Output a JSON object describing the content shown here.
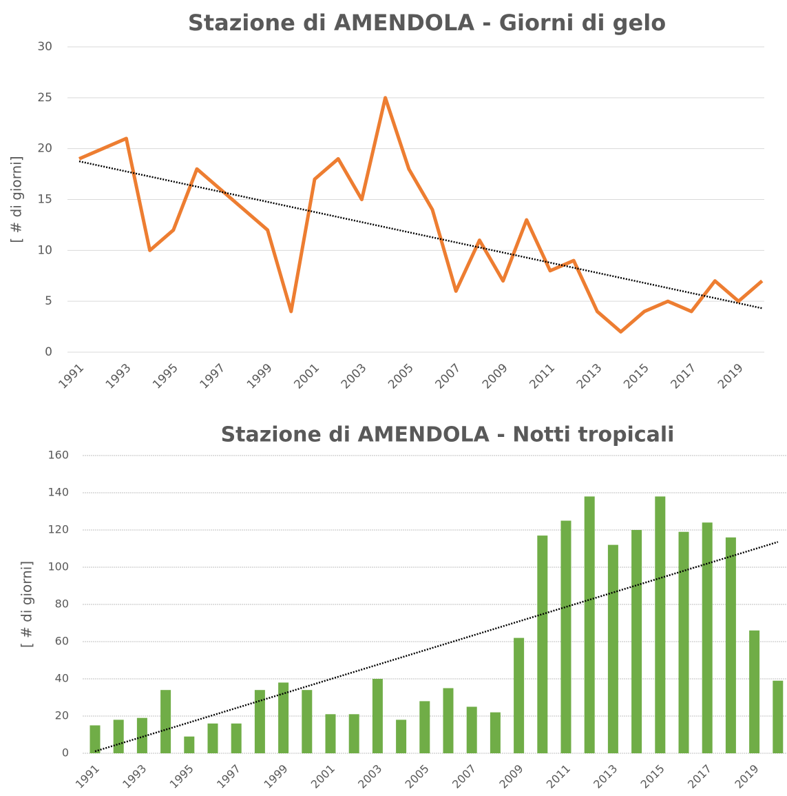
{
  "chart_data": [
    {
      "type": "line",
      "title": "Stazione di AMENDOLA - Giorni di gelo",
      "y_label": "[ # di giorni]",
      "categories": [
        "1991",
        null,
        "1993",
        null,
        "1995",
        null,
        "1997",
        null,
        "1999",
        null,
        "2001",
        null,
        "2003",
        null,
        "2005",
        null,
        "2007",
        null,
        "2009",
        null,
        "2011",
        null,
        "2013",
        null,
        "2015",
        null,
        "2017",
        null,
        "2019",
        null
      ],
      "series": [
        {
          "name": "Giorni di gelo",
          "color": "#ed7d31",
          "values": [
            19,
            20,
            21,
            10,
            12,
            18,
            16,
            14,
            12,
            4,
            17,
            19,
            15,
            25,
            18,
            14,
            6,
            11,
            7,
            13,
            8,
            9,
            4,
            2,
            4,
            5,
            4,
            7,
            5,
            7
          ]
        }
      ],
      "ylim": [
        0,
        30
      ],
      "yticks": [
        0,
        5,
        10,
        15,
        20,
        25,
        30
      ],
      "grid": true,
      "trendline": "linear"
    },
    {
      "type": "bar",
      "title": "Stazione di AMENDOLA - Notti tropicali",
      "y_label": "[ # di giorni]",
      "categories": [
        "1991",
        null,
        "1993",
        null,
        "1995",
        null,
        "1997",
        null,
        "1999",
        null,
        "2001",
        null,
        "2003",
        null,
        "2005",
        null,
        "2007",
        null,
        "2009",
        null,
        "2011",
        null,
        "2013",
        null,
        "2015",
        null,
        "2017",
        null,
        "2019",
        null
      ],
      "series": [
        {
          "name": "Notti tropicali",
          "color": "#70ad47",
          "values": [
            15,
            18,
            19,
            34,
            9,
            16,
            16,
            34,
            38,
            34,
            21,
            21,
            40,
            18,
            28,
            35,
            25,
            22,
            62,
            117,
            125,
            138,
            112,
            120,
            138,
            119,
            124,
            116,
            66,
            39
          ]
        }
      ],
      "ylim": [
        0,
        160
      ],
      "yticks": [
        0,
        20,
        40,
        60,
        80,
        100,
        120,
        140,
        160
      ],
      "grid": true,
      "trendline": "linear"
    }
  ]
}
